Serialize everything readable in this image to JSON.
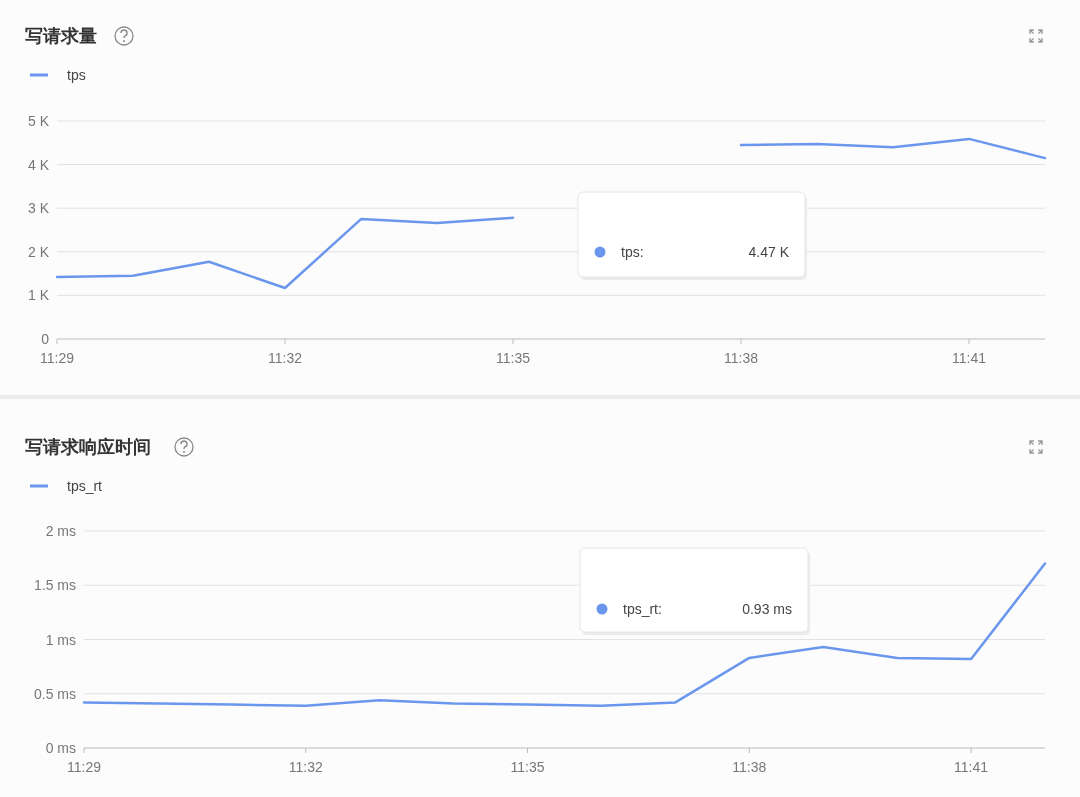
{
  "chart_data": [
    {
      "type": "line",
      "title": "写请求量",
      "categories": [
        "11:29",
        null,
        null,
        "11:32",
        null,
        null,
        "11:35",
        null,
        null,
        "11:38",
        null,
        null,
        "11:41",
        null
      ],
      "series": [
        {
          "name": "tps",
          "color": "#6b96ee",
          "values": [
            1.42,
            1.45,
            1.77,
            1.17,
            2.75,
            2.66,
            2.78,
            null,
            null,
            4.45,
            4.47,
            4.4,
            4.59,
            4.15
          ]
        }
      ],
      "ylim": [
        0,
        5
      ],
      "yticks": [
        0,
        {
          "value": 1,
          "label": "1 K"
        },
        {
          "value": 2,
          "label": "2 K"
        },
        {
          "value": 3,
          "label": "3 K"
        },
        {
          "value": 4,
          "label": "4 K"
        },
        {
          "value": 5,
          "label": "5 K"
        }
      ],
      "grid": "y",
      "legend": "top left",
      "annotations": [
        "tps:",
        "4.47 K"
      ]
    },
    {
      "type": "line",
      "title": "写请求响应时间",
      "categories": [
        "11:29",
        null,
        null,
        "11:32",
        null,
        null,
        "11:35",
        null,
        null,
        "11:38",
        null,
        null,
        "11:41",
        null
      ],
      "series": [
        {
          "name": "tps_rt",
          "color": "#6b96ee",
          "values": [
            0.42,
            0.41,
            0.4,
            0.39,
            0.44,
            0.41,
            0.4,
            0.39,
            0.42,
            0.83,
            0.93,
            0.83,
            0.82,
            1.7
          ]
        }
      ],
      "ylim": [
        0,
        2
      ],
      "yticks": [
        {
          "value": 0,
          "label": "0 ms"
        },
        {
          "value": 0.5,
          "label": "0.5 ms"
        },
        {
          "value": 1,
          "label": "1 ms"
        },
        {
          "value": 1.5,
          "label": "1.5 ms"
        },
        {
          "value": 2,
          "label": "2 ms"
        }
      ],
      "grid": "y",
      "legend": "top left",
      "annotations": [
        "tps_rt:",
        "0.93 ms"
      ]
    }
  ]
}
